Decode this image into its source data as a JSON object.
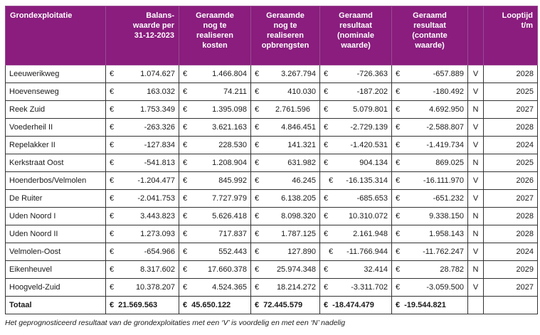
{
  "table": {
    "headers": [
      "Grondexploitatie",
      "Balans-\nwaarde per\n31-12-2023",
      "Geraamde\nnog te\nrealiseren\nkosten",
      "Geraamde\nnog te\nrealiseren\nopbrengsten",
      "Geraamd\nresultaat\n(nominale\nwaarde)",
      "Geraamd\nresultaat\n(contante\nwaarde)",
      "",
      "Looptijd\nt/m"
    ],
    "currency": "€",
    "rows": [
      {
        "name": "Leeuwerikweg",
        "balans": "1.074.627",
        "kosten": "1.466.804",
        "opbrengsten": "3.267.794",
        "nominaal": "-726.363",
        "contant": "-657.889",
        "vn": "V",
        "looptijd": "2028"
      },
      {
        "name": "Hoevenseweg",
        "balans": "163.032",
        "kosten": "74.211",
        "opbrengsten": "410.030",
        "nominaal": "-187.202",
        "contant": "-180.492",
        "vn": "V",
        "looptijd": "2025"
      },
      {
        "name": "Reek Zuid",
        "balans": "1.753.349",
        "kosten": "1.395.098",
        "opbrengsten": "2.761.596",
        "nominaal": "5.079.801",
        "contant": "4.692.950",
        "vn": "N",
        "looptijd": "2027"
      },
      {
        "name": "Voederheil II",
        "balans": "-263.326",
        "kosten": "3.621.163",
        "opbrengsten": "4.846.451",
        "nominaal": "-2.729.139",
        "contant": "-2.588.807",
        "vn": "V",
        "looptijd": "2028"
      },
      {
        "name": "Repelakker II",
        "balans": "-127.834",
        "kosten": "228.530",
        "opbrengsten": "141.321",
        "nominaal": "-1.420.531",
        "contant": "-1.419.734",
        "vn": "V",
        "looptijd": "2024"
      },
      {
        "name": "Kerkstraat Oost",
        "balans": "-541.813",
        "kosten": "1.208.904",
        "opbrengsten": "631.982",
        "nominaal": "904.134",
        "contant": "869.025",
        "vn": "N",
        "looptijd": "2025"
      },
      {
        "name": "Hoenderbos/Velmolen",
        "balans": "-1.204.477",
        "kosten": "845.992",
        "opbrengsten": "46.245",
        "nominaal": "-16.135.314",
        "contant": "-16.111.970",
        "vn": "V",
        "looptijd": "2026"
      },
      {
        "name": "De Ruiter",
        "balans": "-2.041.753",
        "kosten": "7.727.979",
        "opbrengsten": "6.138.205",
        "nominaal": "-685.653",
        "contant": "-651.232",
        "vn": "V",
        "looptijd": "2027"
      },
      {
        "name": "Uden Noord I",
        "balans": "3.443.823",
        "kosten": "5.626.418",
        "opbrengsten": "8.098.320",
        "nominaal": "10.310.072",
        "contant": "9.338.150",
        "vn": "N",
        "looptijd": "2028"
      },
      {
        "name": "Uden Noord II",
        "balans": "1.273.093",
        "kosten": "717.837",
        "opbrengsten": "1.787.125",
        "nominaal": "2.161.948",
        "contant": "1.958.143",
        "vn": "N",
        "looptijd": "2028"
      },
      {
        "name": "Velmolen-Oost",
        "balans": "-654.966",
        "kosten": "552.443",
        "opbrengsten": "127.890",
        "nominaal": "-11.766.944",
        "contant": "-11.762.247",
        "vn": "V",
        "looptijd": "2024"
      },
      {
        "name": "Eikenheuvel",
        "balans": "8.317.602",
        "kosten": "17.660.378",
        "opbrengsten": "25.974.348",
        "nominaal": "32.414",
        "contant": "28.782",
        "vn": "N",
        "looptijd": "2029"
      },
      {
        "name": "Hoogveld-Zuid",
        "balans": "10.378.207",
        "kosten": "4.524.365",
        "opbrengsten": "18.214.272",
        "nominaal": "-3.311.702",
        "contant": "-3.059.500",
        "vn": "V",
        "looptijd": "2027"
      }
    ],
    "total": {
      "label": "Totaal",
      "balans": "21.569.563",
      "kosten": "45.650.122",
      "opbrengsten": "72.445.579",
      "nominaal": "-18.474.479",
      "contant": "-19.544.821"
    }
  },
  "footnote": "Het geprognosticeerd resultaat van de grondexploitaties met een ‘V’ is voordelig en met een ‘N’ nadelig"
}
